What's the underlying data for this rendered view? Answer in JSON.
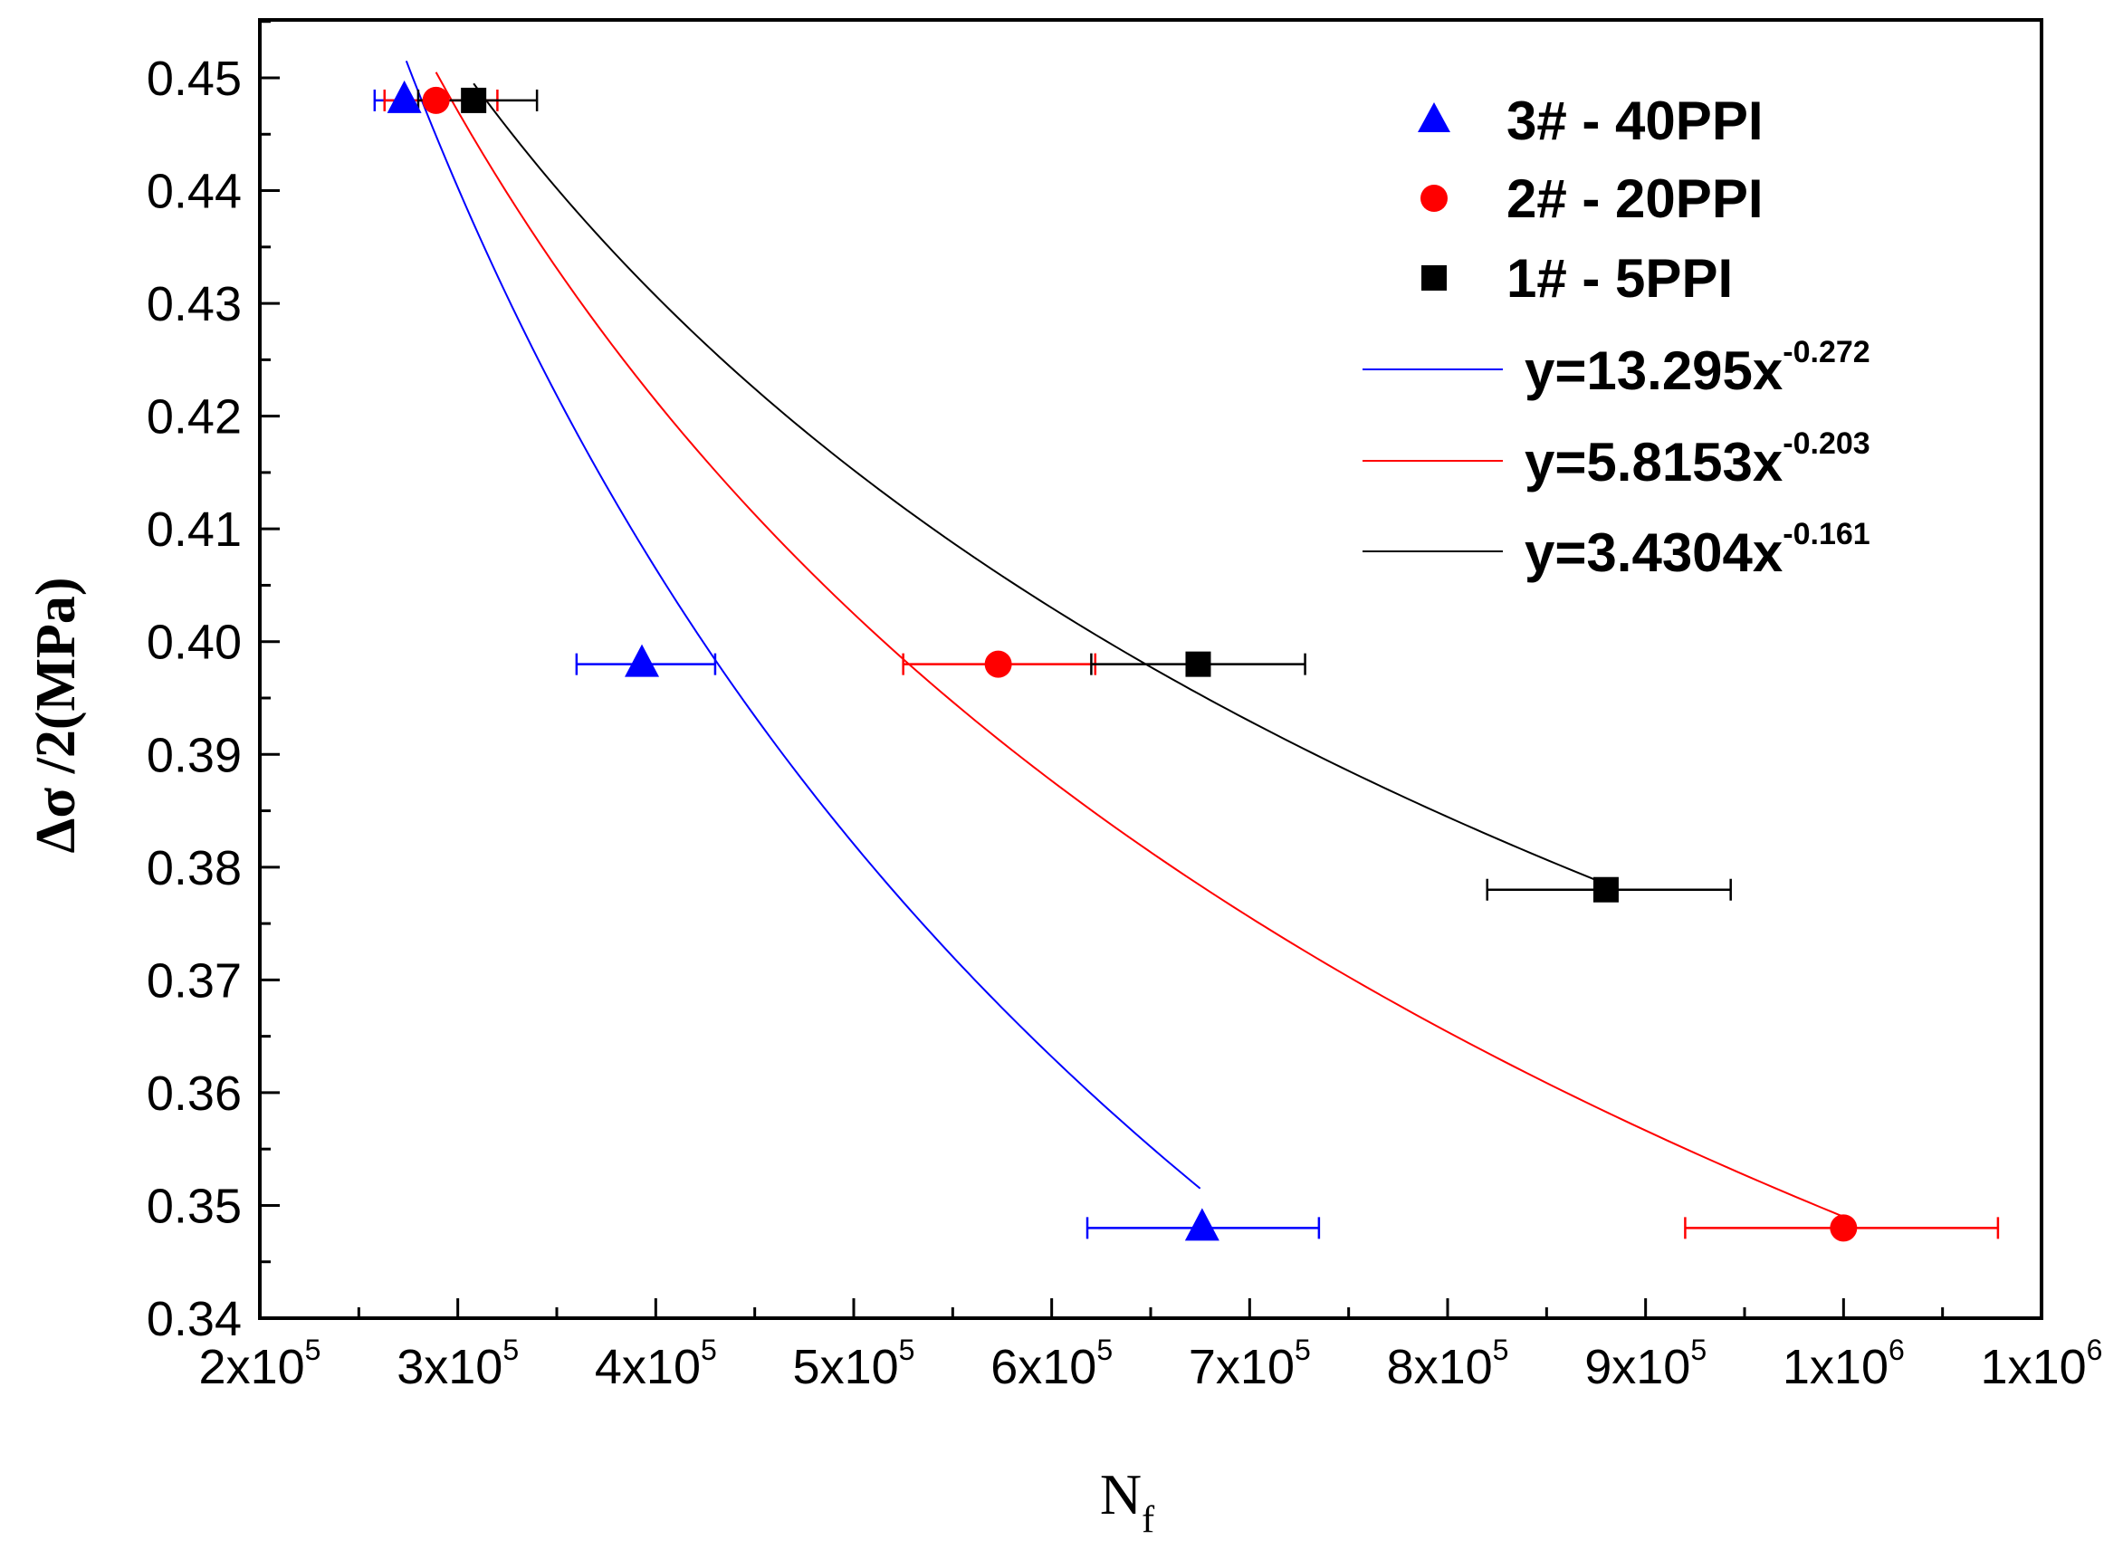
{
  "chart_data": {
    "type": "scatter",
    "title": "",
    "xlabel": "N",
    "xlabel_sub": "f",
    "ylabel": "Δσ /2(MPa)",
    "xlim": [
      200000,
      1100000
    ],
    "ylim": [
      0.34,
      0.455
    ],
    "x_ticks": [
      {
        "value": 200000,
        "mant": "2x10",
        "exp": "5"
      },
      {
        "value": 300000,
        "mant": "3x10",
        "exp": "5"
      },
      {
        "value": 400000,
        "mant": "4x10",
        "exp": "5"
      },
      {
        "value": 500000,
        "mant": "5x10",
        "exp": "5"
      },
      {
        "value": 600000,
        "mant": "6x10",
        "exp": "5"
      },
      {
        "value": 700000,
        "mant": "7x10",
        "exp": "5"
      },
      {
        "value": 800000,
        "mant": "8x10",
        "exp": "5"
      },
      {
        "value": 900000,
        "mant": "9x10",
        "exp": "5"
      },
      {
        "value": 1000000,
        "mant": "1x10",
        "exp": "6"
      },
      {
        "value": 1100000,
        "mant": "1x10",
        "exp": "6"
      }
    ],
    "y_ticks": [
      "0.34",
      "0.35",
      "0.36",
      "0.37",
      "0.38",
      "0.39",
      "0.40",
      "0.41",
      "0.42",
      "0.43",
      "0.44",
      "0.45"
    ],
    "series": [
      {
        "name": "3# - 40PPI",
        "marker": "triangle",
        "color": "#0000ff",
        "points": [
          {
            "x": 273000,
            "y": 0.448,
            "xerr": [
              258000,
              290000
            ]
          },
          {
            "x": 393000,
            "y": 0.398,
            "xerr": [
              360000,
              430000
            ]
          },
          {
            "x": 676000,
            "y": 0.348,
            "xerr": [
              618000,
              735000
            ]
          }
        ],
        "fit": {
          "label": "y=13.295x",
          "exp": "-0.272",
          "a": 13.295,
          "b": -0.272,
          "x_start": 274000,
          "x_end": 675000
        }
      },
      {
        "name": "2# - 20PPI",
        "marker": "circle",
        "color": "#ff0000",
        "points": [
          {
            "x": 289000,
            "y": 0.448,
            "xerr": [
              263000,
              320000
            ]
          },
          {
            "x": 573000,
            "y": 0.398,
            "xerr": [
              525000,
              622000
            ]
          },
          {
            "x": 1000000,
            "y": 0.348,
            "xerr": [
              920000,
              1078000
            ]
          }
        ],
        "fit": {
          "label": "y=5.8153x",
          "exp": "-0.203",
          "a": 5.8153,
          "b": -0.203,
          "x_start": 289000,
          "x_end": 1000000
        }
      },
      {
        "name": "1# -   5PPI",
        "marker": "square",
        "color": "#000000",
        "points": [
          {
            "x": 308000,
            "y": 0.448,
            "xerr": [
              280000,
              340000
            ]
          },
          {
            "x": 674000,
            "y": 0.398,
            "xerr": [
              620000,
              728000
            ]
          },
          {
            "x": 880000,
            "y": 0.378,
            "xerr": [
              820000,
              943000
            ]
          }
        ],
        "fit": {
          "label": "y=3.4304x",
          "exp": "-0.161",
          "a": 3.4304,
          "b": -0.161,
          "x_start": 308000,
          "x_end": 880000
        }
      }
    ],
    "legend_position": "top-right",
    "grid": false
  }
}
